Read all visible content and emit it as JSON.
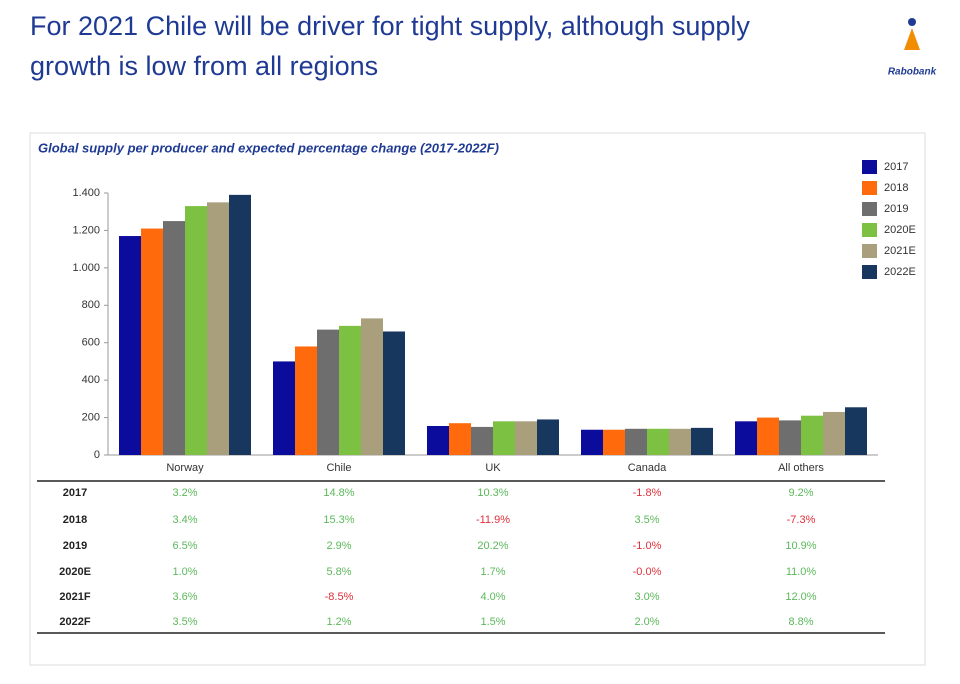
{
  "header": {
    "title_lines": [
      "For 2021 Chile will be driver for tight supply, although supply",
      "growth is low from all regions"
    ],
    "logo": "Rabobank"
  },
  "chart_data": {
    "type": "bar",
    "title": "Global supply per producer and expected percentage change (2017-2022F)",
    "categories": [
      "Norway",
      "Chile",
      "UK",
      "Canada",
      "All others"
    ],
    "series": [
      {
        "name": "2017",
        "color": "#0b0b9c",
        "values": [
          1170,
          500,
          155,
          135,
          180
        ]
      },
      {
        "name": "2018",
        "color": "#ff6a0d",
        "values": [
          1210,
          580,
          170,
          135,
          200
        ]
      },
      {
        "name": "2019",
        "color": "#6e6e6e",
        "values": [
          1250,
          670,
          150,
          140,
          185
        ]
      },
      {
        "name": "2020E",
        "color": "#7cc142",
        "values": [
          1330,
          690,
          180,
          140,
          210
        ]
      },
      {
        "name": "2021E",
        "color": "#a99f7c",
        "values": [
          1350,
          730,
          180,
          140,
          230
        ]
      },
      {
        "name": "2022E",
        "color": "#17375e",
        "values": [
          1390,
          660,
          190,
          145,
          255
        ]
      }
    ],
    "ylim": [
      0,
      1400
    ],
    "yticks": [
      0,
      200,
      400,
      600,
      800,
      {
        "value": 1000,
        "label": "1.000"
      },
      {
        "value": 1200,
        "label": "1.200"
      },
      {
        "value": 1400,
        "label": "1.400"
      }
    ],
    "grid": false,
    "legend": "right"
  },
  "table": {
    "rows": [
      [
        "2017",
        "3.2%",
        "14.8%",
        "10.3%",
        "-1.8%",
        "9.2%"
      ],
      [
        "2018",
        "3.4%",
        "15.3%",
        "-11.9%",
        "3.5%",
        "-7.3%"
      ],
      [
        "2019",
        "6.5%",
        "2.9%",
        "20.2%",
        "-1.0%",
        "10.9%"
      ],
      [
        "2020E",
        "1.0%",
        "5.8%",
        "1.7%",
        "-0.0%",
        "11.0%"
      ],
      [
        "2021F",
        "3.6%",
        "-8.5%",
        "4.0%",
        "3.0%",
        "12.0%"
      ],
      [
        "2022F",
        "3.5%",
        "1.2%",
        "1.5%",
        "2.0%",
        "8.8%"
      ]
    ]
  }
}
